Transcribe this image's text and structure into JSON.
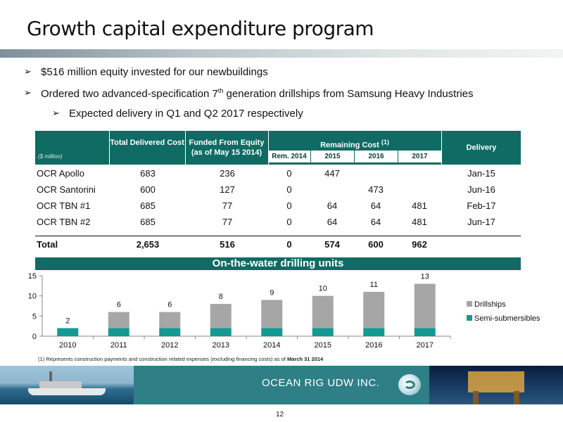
{
  "title": "Growth capital expenditure program",
  "bullets": {
    "b1": "$516 million equity invested for our newbuildings",
    "b2_pre": "Ordered two advanced-specification 7",
    "b2_sup": "th",
    "b2_post": " generation drillships from Samsung Heavy Industries",
    "b3": "Expected delivery in Q1 and Q2 2017 respectively"
  },
  "table": {
    "unit_note": "($ million)",
    "col_total": "Total Delivered Cost",
    "col_funded": "Funded From Equity (as of May 15 2014)",
    "col_remaining": "Remaining Cost",
    "col_remaining_sup": "(1)",
    "sub_rem2014": "Rem. 2014",
    "sub_2015": "2015",
    "sub_2016": "2016",
    "sub_2017": "2017",
    "col_delivery": "Delivery",
    "rows": [
      {
        "name": "OCR Apollo",
        "total": "683",
        "funded": "236",
        "rem2014": "0",
        "y2015": "447",
        "y2016": "",
        "y2017": "",
        "delivery": "Jan-15"
      },
      {
        "name": "OCR Santorini",
        "total": "600",
        "funded": "127",
        "rem2014": "0",
        "y2015": "",
        "y2016": "473",
        "y2017": "",
        "delivery": "Jun-16"
      },
      {
        "name": "OCR TBN #1",
        "total": "685",
        "funded": "77",
        "rem2014": "0",
        "y2015": "64",
        "y2016": "64",
        "y2017": "481",
        "delivery": "Feb-17"
      },
      {
        "name": "OCR TBN #2",
        "total": "685",
        "funded": "77",
        "rem2014": "0",
        "y2015": "64",
        "y2016": "64",
        "y2017": "481",
        "delivery": "Jun-17"
      }
    ],
    "total": {
      "name": "Total",
      "total": "2,653",
      "funded": "516",
      "rem2014": "0",
      "y2015": "574",
      "y2016": "600",
      "y2017": "962",
      "delivery": ""
    }
  },
  "chart_data": {
    "type": "bar",
    "stacked": true,
    "title": "On-the-water drilling units",
    "categories": [
      "2010",
      "2011",
      "2012",
      "2013",
      "2014",
      "2015",
      "2016",
      "2017"
    ],
    "series": [
      {
        "name": "Semi-submersibles",
        "values": [
          2,
          2,
          2,
          2,
          2,
          2,
          2,
          2
        ],
        "color": "#139a92"
      },
      {
        "name": "Drillships",
        "values": [
          0,
          4,
          4,
          6,
          7,
          8,
          9,
          11
        ],
        "color": "#a6a6a6"
      }
    ],
    "totals": [
      2,
      6,
      6,
      8,
      9,
      10,
      11,
      13
    ],
    "ylim": [
      0,
      15
    ],
    "yticks": [
      0,
      5,
      10,
      15
    ],
    "legend": "right",
    "grid": false
  },
  "footnote": {
    "text": "(1) Represents construction payments and construction related expenses (excluding  financing costs) as of ",
    "bold": "March 31 2014"
  },
  "footer": {
    "company": "OCEAN RIG UDW INC."
  },
  "page_number": "12",
  "colors": {
    "accent": "#0f6b63",
    "footer": "#2e7f86"
  }
}
